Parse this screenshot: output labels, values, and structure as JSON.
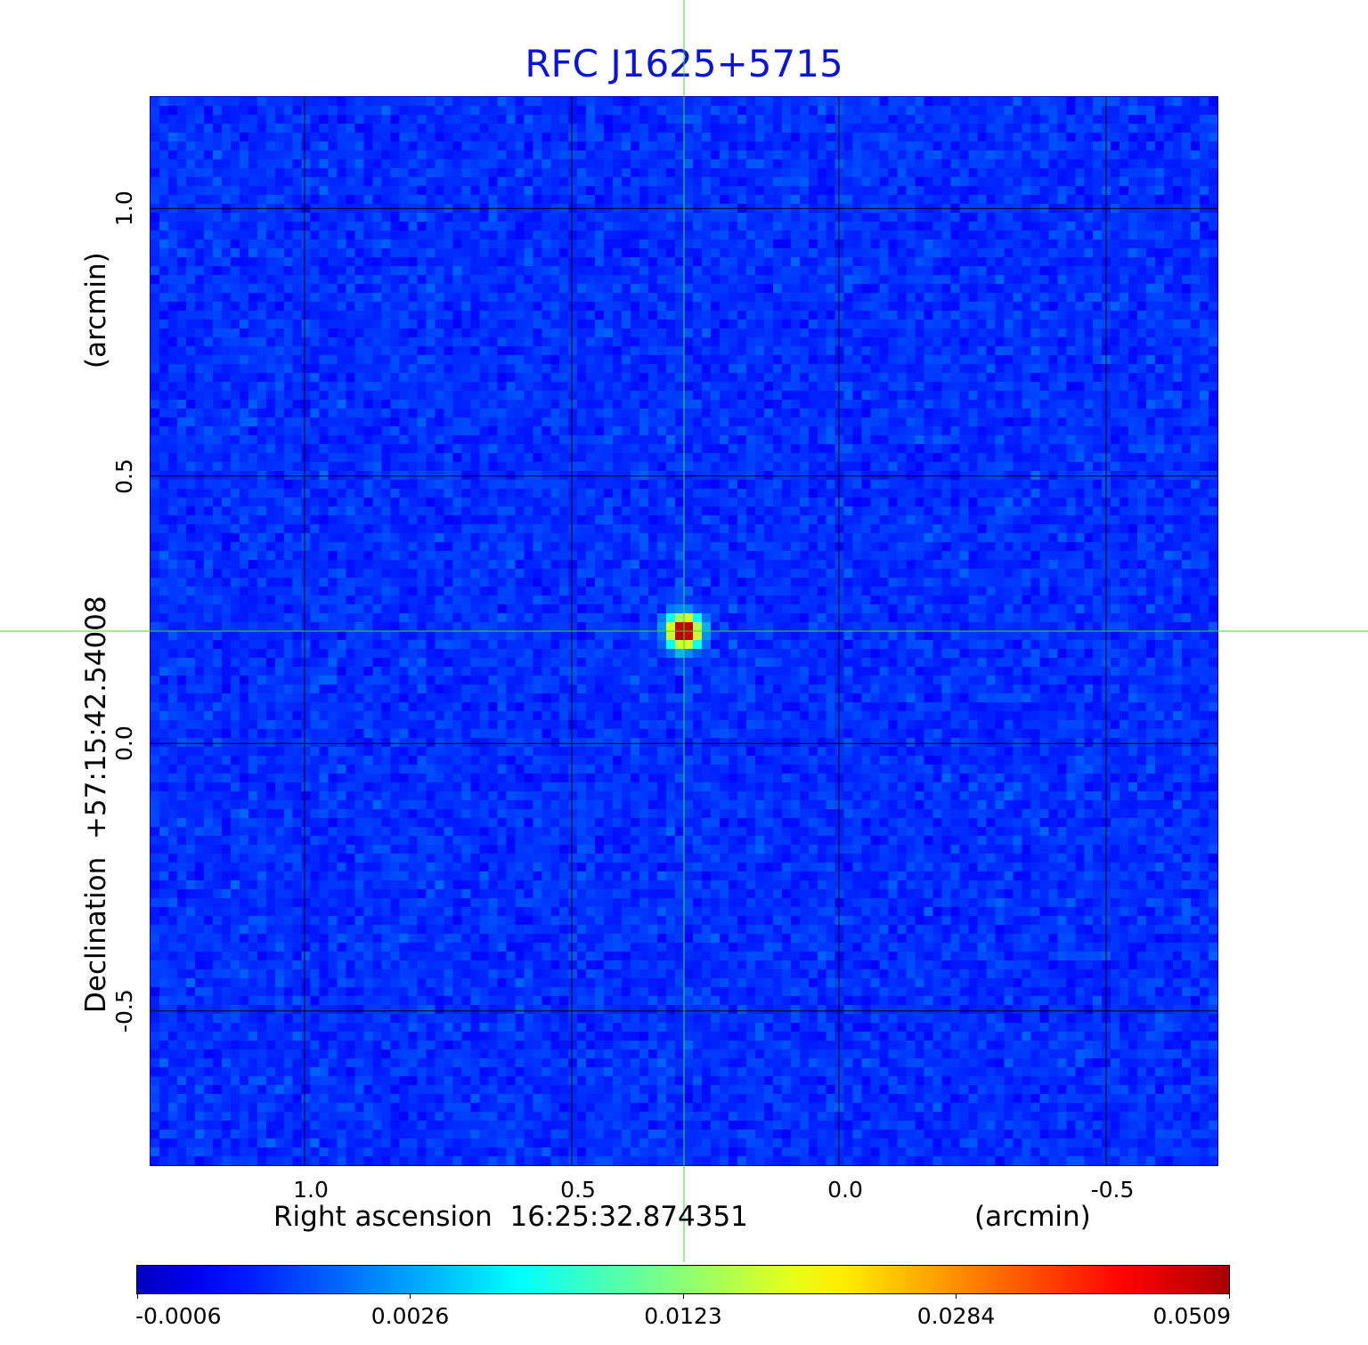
{
  "title": "RFC J1625+5715",
  "chart_data": {
    "type": "heatmap",
    "title": "RFC J1625+5715",
    "xlabel": "Right ascension  16:25:32.874351",
    "xunit": "(arcmin)",
    "ylabel": "Declination  +57:15:42.54008",
    "yunit": "(arcmin)",
    "x_ticks": [
      1.0,
      0.5,
      0.0,
      -0.5
    ],
    "y_ticks": [
      1.0,
      0.5,
      0.0,
      -0.5
    ],
    "x_tick_labels": [
      "1.0",
      "0.5",
      "0.0",
      "-0.5"
    ],
    "y_tick_labels": [
      "1.0",
      "0.5",
      "0.0",
      "-0.5"
    ],
    "xlim": [
      1.29,
      -0.71
    ],
    "ylim": [
      -0.79,
      1.21
    ],
    "grid": true,
    "colormap": "jet",
    "source_peak": {
      "x": 0.29,
      "y": 0.21,
      "value": 0.0509
    },
    "crosshair": {
      "x": 0.29,
      "y": 0.21,
      "color": "#33dd33"
    },
    "colorbar": {
      "range": [
        -0.0006,
        0.0509
      ],
      "tick_labels": [
        "-0.0006",
        "0.0026",
        "0.0123",
        "0.0284",
        "0.0509"
      ]
    }
  }
}
